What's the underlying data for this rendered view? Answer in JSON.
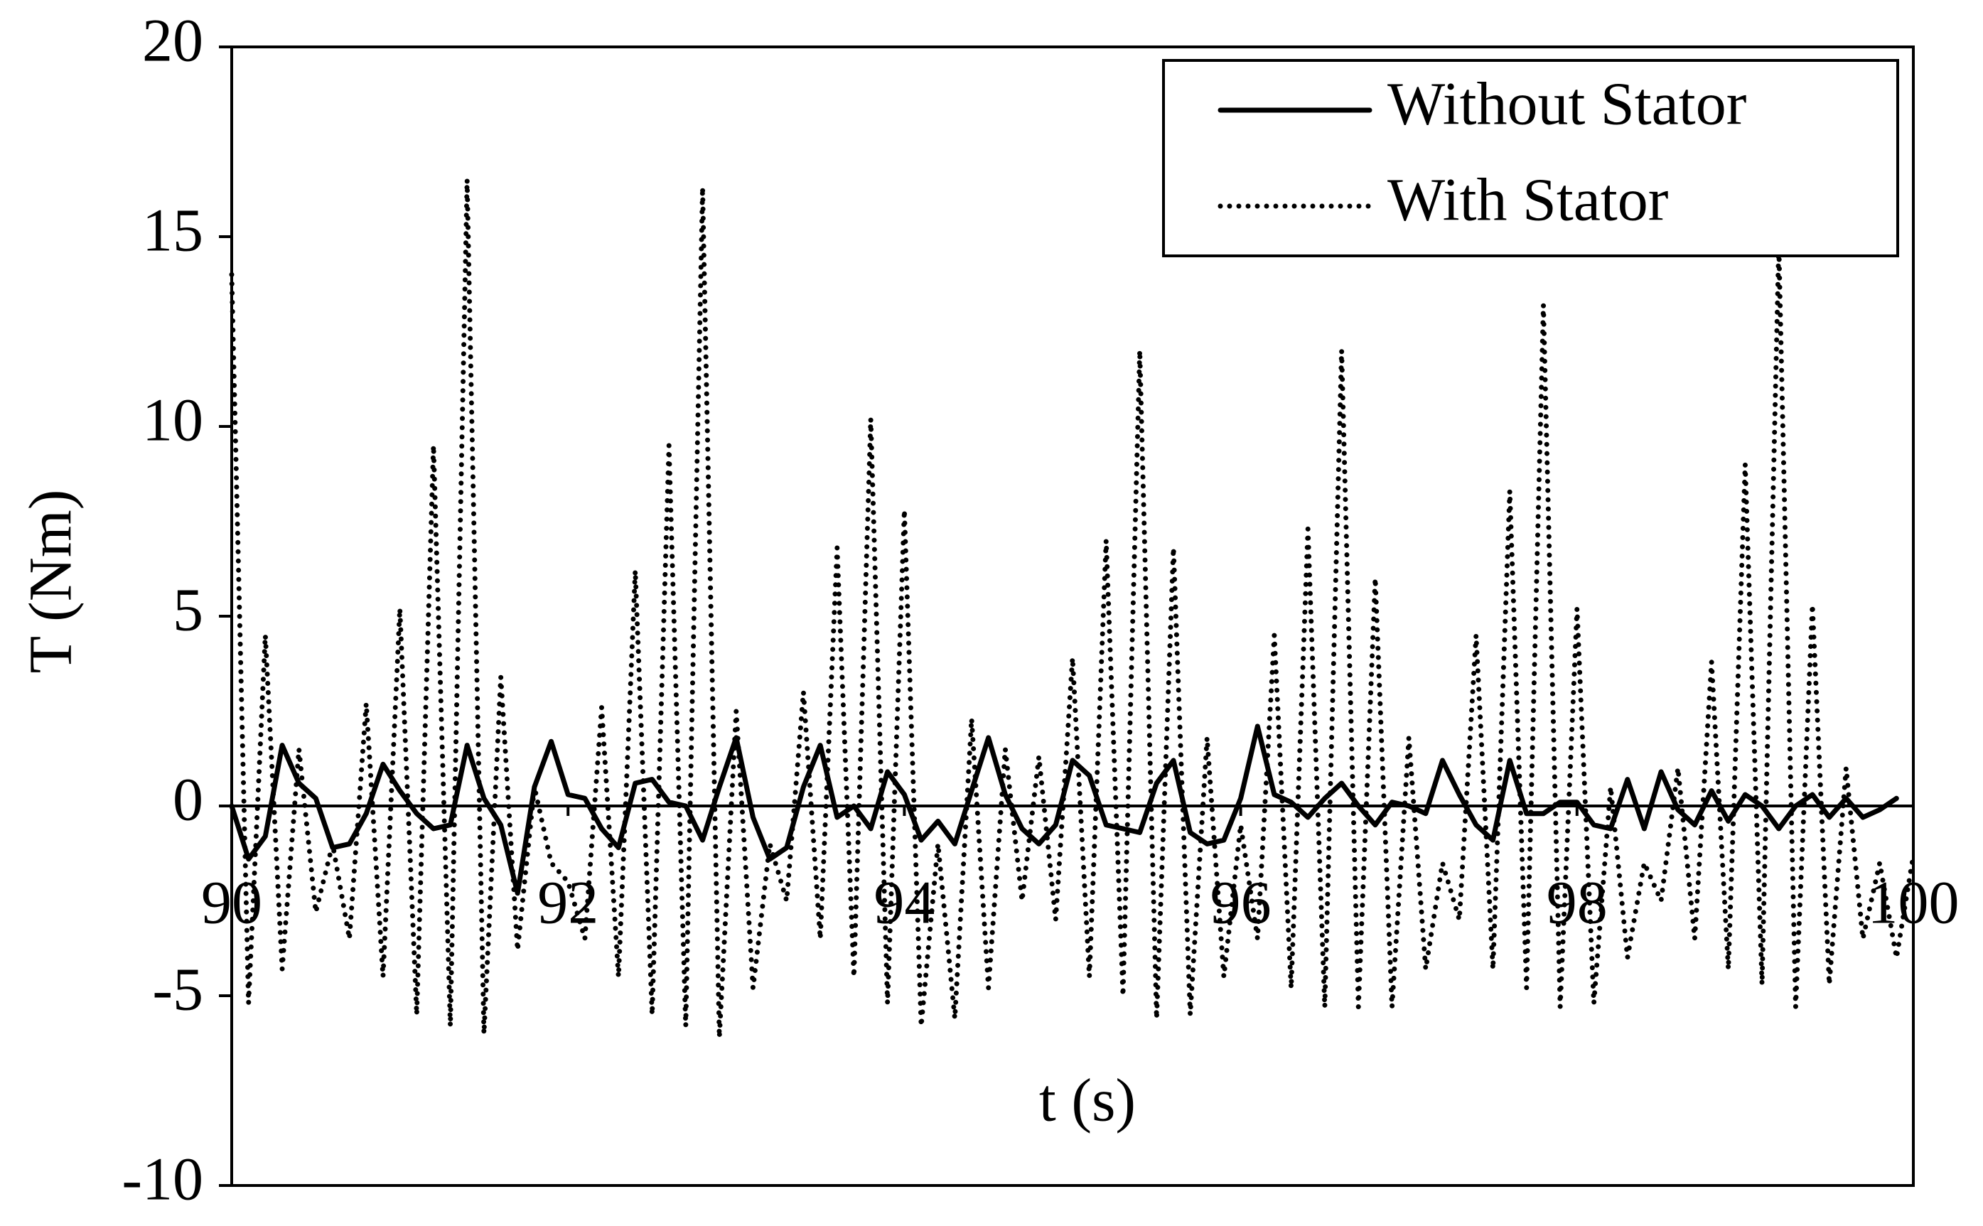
{
  "chart_data": {
    "type": "line",
    "x_label": "t (s)",
    "y_label": "T (Nm)",
    "x": [
      90.0,
      90.1,
      90.2,
      90.3,
      90.4,
      90.5,
      90.6,
      90.7,
      90.8,
      90.9,
      91.0,
      91.1,
      91.2,
      91.3,
      91.4,
      91.5,
      91.6,
      91.7,
      91.8,
      91.9,
      92.0,
      92.1,
      92.2,
      92.3,
      92.4,
      92.5,
      92.6,
      92.7,
      92.8,
      92.9,
      93.0,
      93.1,
      93.2,
      93.3,
      93.4,
      93.5,
      93.6,
      93.7,
      93.8,
      93.9,
      94.0,
      94.1,
      94.2,
      94.3,
      94.4,
      94.5,
      94.6,
      94.7,
      94.8,
      94.9,
      95.0,
      95.1,
      95.2,
      95.3,
      95.4,
      95.5,
      95.6,
      95.7,
      95.8,
      95.9,
      96.0,
      96.1,
      96.2,
      96.3,
      96.4,
      96.5,
      96.6,
      96.7,
      96.8,
      96.9,
      97.0,
      97.1,
      97.2,
      97.3,
      97.4,
      97.5,
      97.6,
      97.7,
      97.8,
      97.9,
      98.0,
      98.1,
      98.2,
      98.3,
      98.4,
      98.5,
      98.6,
      98.7,
      98.8,
      98.9,
      99.0,
      99.1,
      99.2,
      99.3,
      99.4,
      99.5,
      99.6,
      99.7,
      99.8,
      99.9,
      100.0
    ],
    "series": [
      {
        "name": "Without Stator",
        "color": "#000000",
        "style": "solid",
        "values": [
          0,
          -1.4,
          -0.8,
          1.6,
          0.6,
          0.2,
          -1.1,
          -1,
          -0.2,
          1.1,
          0.4,
          -0.2,
          -0.6,
          -0.5,
          1.6,
          0.2,
          -0.5,
          -2.3,
          0.5,
          1.7,
          0.3,
          0.2,
          -0.6,
          -1.1,
          0.6,
          0.7,
          0.1,
          0,
          -0.9,
          0.5,
          1.8,
          -0.3,
          -1.4,
          -1.1,
          0.5,
          1.6,
          -0.3,
          0,
          -0.6,
          0.9,
          0.3,
          -0.9,
          -0.4,
          -1,
          0.4,
          1.8,
          0.3,
          -0.6,
          -1,
          -0.5,
          1.2,
          0.8,
          -0.5,
          -0.6,
          -0.7,
          0.6,
          1.2,
          -0.7,
          -1,
          -0.9,
          0.2,
          2.1,
          0.3,
          0.1,
          -0.3,
          0.2,
          0.6,
          0,
          -0.5,
          0.1,
          0,
          -0.2,
          1.2,
          0.3,
          -0.5,
          -0.9,
          1.2,
          -0.2,
          -0.2,
          0.1,
          0.1,
          -0.5,
          -0.6,
          0.7,
          -0.6,
          0.9,
          -0.1,
          -0.5,
          0.4,
          -0.4,
          0.3,
          0,
          -0.6,
          0,
          0.3,
          -0.3,
          0.2,
          -0.3,
          -0.1,
          0.2,
          null
        ]
      },
      {
        "name": "With Stator",
        "color": "#000000",
        "style": "dotted",
        "values": [
          14,
          -5.2,
          4.5,
          -4.3,
          1.5,
          -2.8,
          -1,
          -3.5,
          2.7,
          -4.5,
          5.2,
          -5.5,
          9.5,
          -5.8,
          16.5,
          -6,
          3.4,
          -3.8,
          0.5,
          -1.5,
          -2,
          -3.5,
          2.6,
          -4.5,
          6.2,
          -5.5,
          9.5,
          -5.8,
          16.3,
          -6.1,
          2.5,
          -4.8,
          -1,
          -2.5,
          3,
          -3.5,
          6.8,
          -4.5,
          10.2,
          -5.2,
          7.8,
          -5.8,
          -1,
          -5.6,
          2.3,
          -4.8,
          1.5,
          -2.5,
          1.3,
          -3,
          3.9,
          -4.5,
          7,
          -5,
          12,
          -5.6,
          6.8,
          -5.5,
          1.8,
          -4.5,
          -0.5,
          -3.5,
          4.5,
          -4.8,
          7.3,
          -5.3,
          12,
          -5.3,
          6,
          -5.3,
          1.8,
          -4.3,
          -1.5,
          -3,
          4.5,
          -4.3,
          8.3,
          -4.8,
          13.2,
          -5.3,
          5.2,
          -5.2,
          0.5,
          -4,
          -1.5,
          -2.5,
          1,
          -3.5,
          3.8,
          -4.3,
          9,
          -4.7,
          14.8,
          -5.3,
          5.3,
          -4.7,
          1,
          -3.5,
          -1.5,
          -4,
          -1.3
        ]
      }
    ],
    "xlim": [
      90,
      100
    ],
    "ylim": [
      -10,
      20
    ],
    "xticks": [
      90,
      92,
      94,
      96,
      98,
      100
    ],
    "yticks": [
      -10,
      -5,
      0,
      5,
      10,
      15,
      20
    ],
    "legend": "top-right"
  }
}
